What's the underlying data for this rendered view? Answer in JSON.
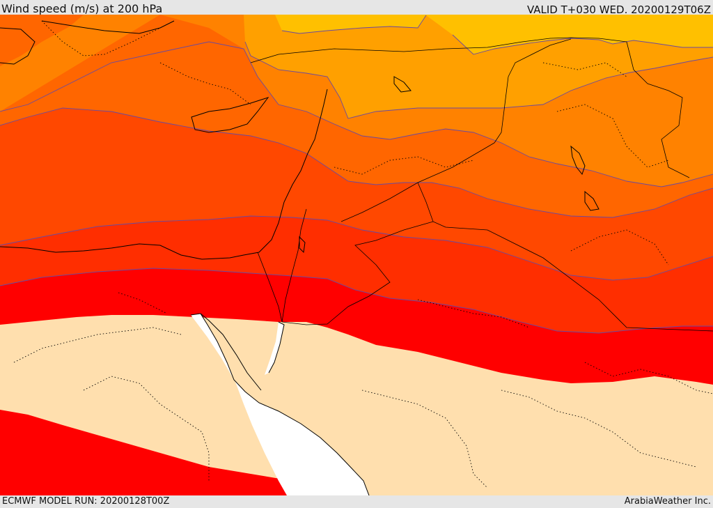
{
  "header": {
    "title": "Wind speed (m/s) at 200 hPa",
    "valid": "VALID T+030 WED. 20200129T06Z"
  },
  "footer": {
    "model_run": "ECMWF MODEL RUN: 20200128T00Z",
    "credit": "ArabiaWeather Inc."
  },
  "colors": {
    "band_1": "#ffc000",
    "band_2": "#ffa000",
    "band_3": "#ff8200",
    "band_4": "#ff6600",
    "band_5": "#ff4800",
    "band_6": "#ff2e00",
    "band_7": "#ff0000",
    "calm": "#ffdfae",
    "sea": "#ffffff",
    "contour_line": "#6a4aa0",
    "border_line": "#000000"
  }
}
